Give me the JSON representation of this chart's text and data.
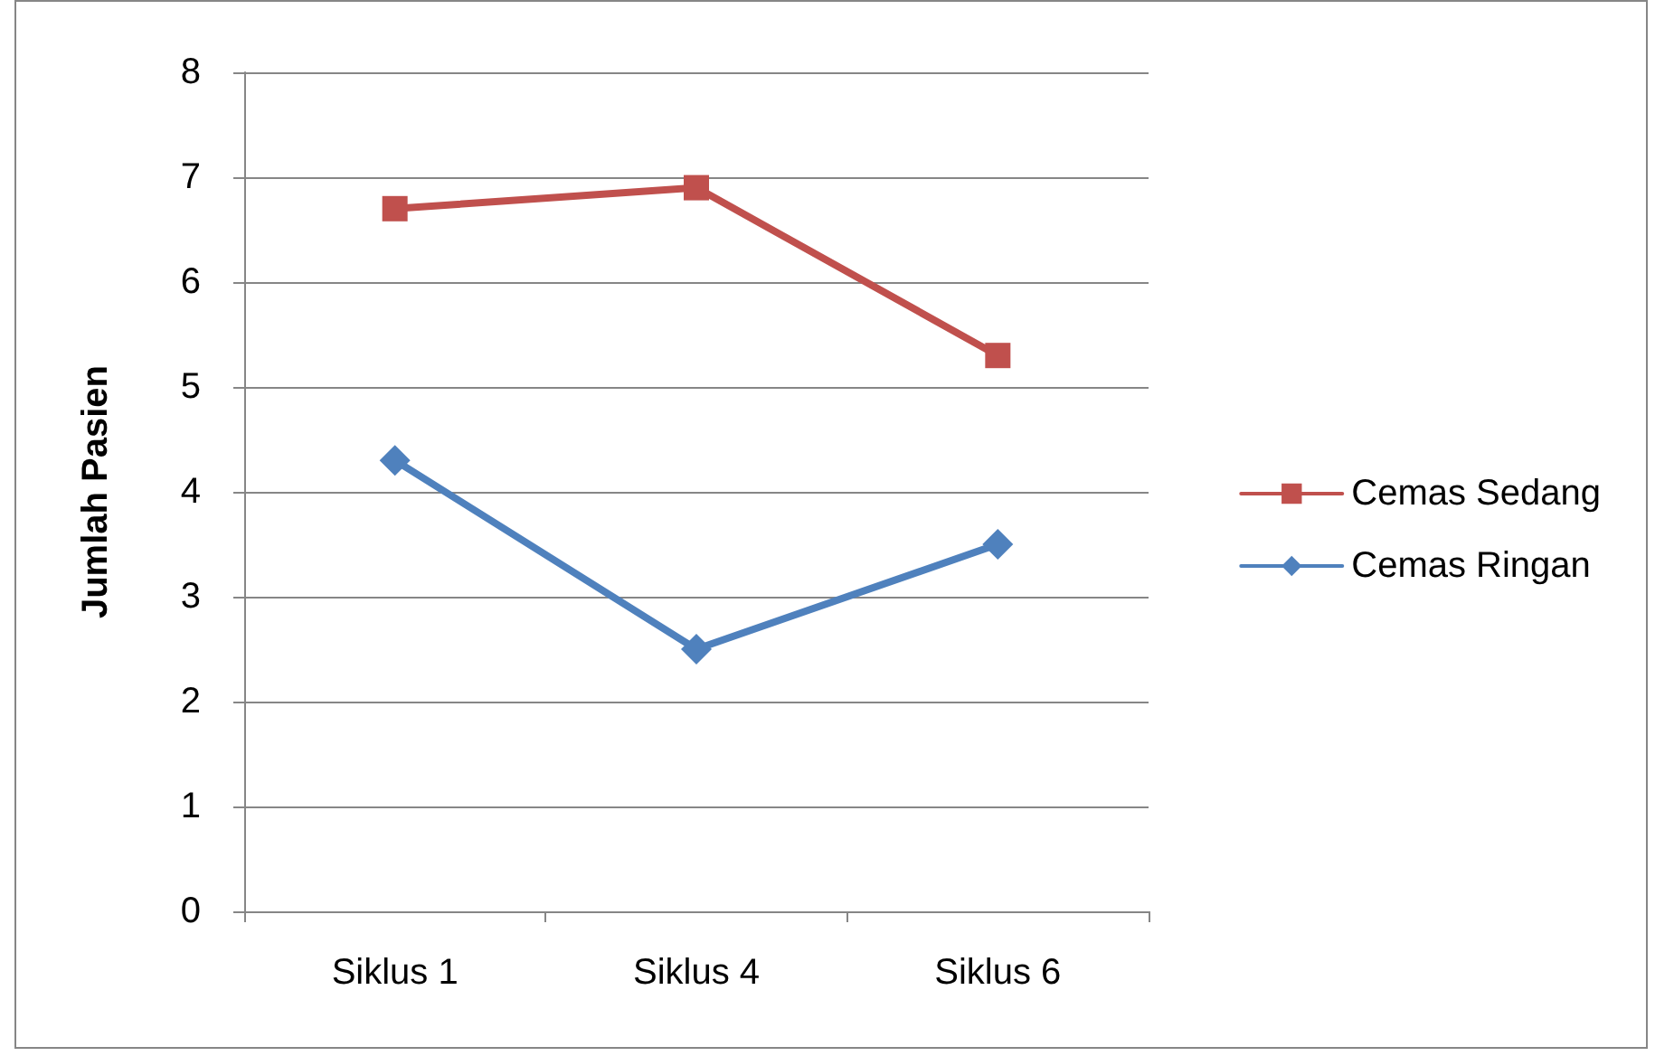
{
  "chart_data": {
    "type": "line",
    "ylabel": "Jumlah Pasien",
    "categories": [
      "Siklus 1",
      "Siklus 4",
      "Siklus 6"
    ],
    "series": [
      {
        "name": "Cemas Sedang",
        "color": "#c0504d",
        "marker": "square",
        "values": [
          6.7,
          6.9,
          5.3
        ]
      },
      {
        "name": "Cemas Ringan",
        "color": "#4f81bd",
        "marker": "diamond",
        "values": [
          4.3,
          2.5,
          3.5
        ]
      }
    ],
    "ylim": [
      0,
      8
    ],
    "yticks": [
      0,
      1,
      2,
      3,
      4,
      5,
      6,
      7,
      8
    ],
    "grid": "y",
    "legend": "right"
  }
}
